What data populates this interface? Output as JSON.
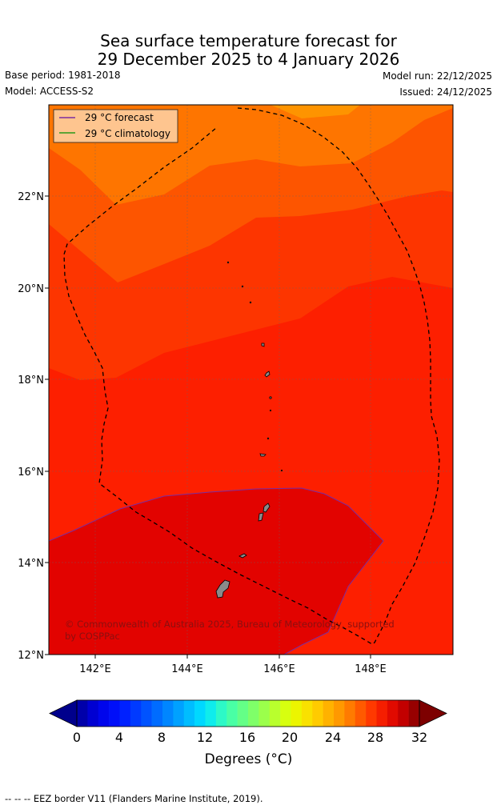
{
  "title": {
    "line1": "Sea surface temperature forecast for",
    "line2": "29 December 2025 to 4 January 2026"
  },
  "meta": {
    "base_period": "Base period: 1981-2018",
    "model": "Model: ACCESS-S2",
    "model_run": "Model run: 22/12/2025",
    "issued": "Issued: 24/12/2025"
  },
  "map": {
    "lat_labels": [
      "22°N",
      "20°N",
      "18°N",
      "16°N",
      "14°N",
      "12°N"
    ],
    "lon_labels": [
      "142°E",
      "144°E",
      "146°E",
      "148°E"
    ],
    "legend": [
      {
        "label": "29 °C  forecast",
        "color": "#7b2ca0"
      },
      {
        "label": "29 °C  climatology",
        "color": "#2a9a1a"
      }
    ],
    "attribution_line1": "© Commonwealth of Australia 2025, Bureau of Meteorology, supported",
    "attribution_line2": "by COSPPac"
  },
  "colorbar": {
    "tick_labels": [
      "0",
      "4",
      "8",
      "12",
      "16",
      "20",
      "24",
      "28",
      "32"
    ],
    "label": "Degrees (°C)"
  },
  "footnote": "--  --  -- EEZ border V11 (Flanders Marine Institute, 2019)."
}
